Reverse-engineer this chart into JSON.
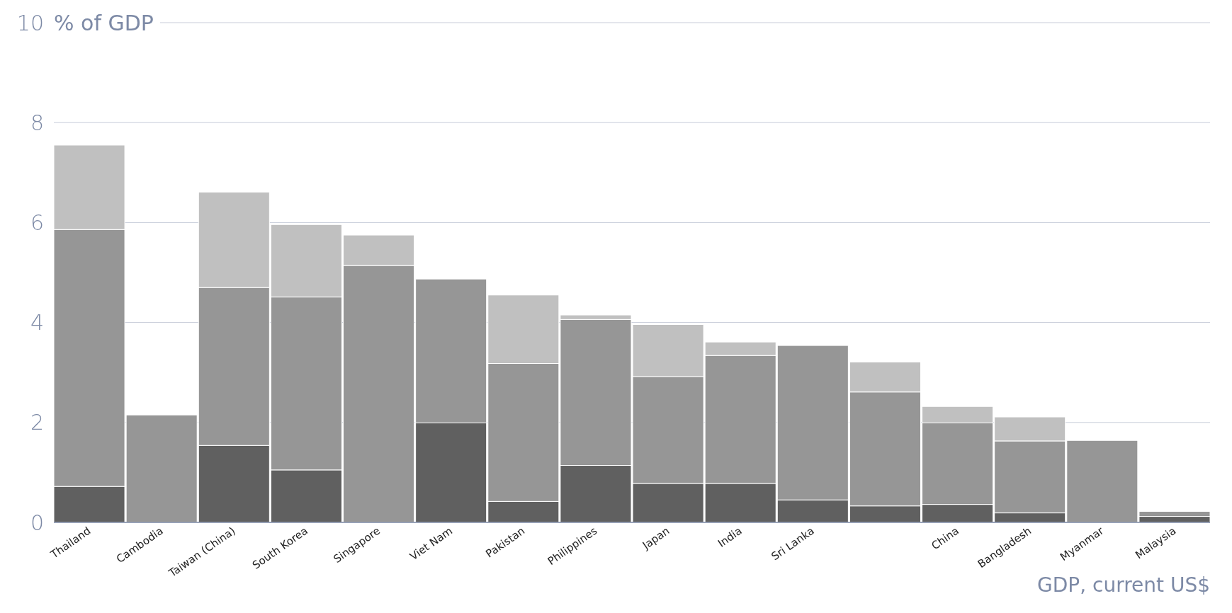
{
  "chart_data": {
    "type": "bar",
    "stacked": true,
    "ylabel": "% of GDP",
    "xlabel": "GDP, current US$",
    "categories": [
      "Thailand",
      "Cambodia",
      "Taiwan (China)",
      "South Korea",
      "Singapore",
      "Viet Nam",
      "Pakistan",
      "Philippines",
      "Japan",
      "India",
      "Sri Lanka",
      null,
      "China",
      "Bangladesh",
      "Myanmar",
      "Malaysia"
    ],
    "series": [
      {
        "color": "#606060",
        "values": [
          0.72,
          null,
          1.54,
          1.05,
          null,
          1.99,
          0.42,
          1.14,
          0.78,
          0.78,
          0.45,
          0.33,
          0.36,
          0.19,
          null,
          0.12
        ]
      },
      {
        "color": "#969696",
        "values": [
          5.14,
          2.15,
          3.16,
          3.46,
          5.14,
          2.88,
          2.76,
          2.92,
          2.14,
          2.56,
          3.09,
          2.28,
          1.63,
          1.44,
          1.64,
          0.1
        ]
      },
      {
        "color": "#c0c0c0",
        "values": [
          1.69,
          null,
          1.91,
          1.45,
          0.61,
          null,
          1.37,
          0.09,
          1.04,
          0.27,
          null,
          0.6,
          0.33,
          0.48,
          null,
          null
        ]
      }
    ],
    "ylim": [
      0,
      10
    ],
    "yticks": [
      0,
      2,
      4,
      6,
      8,
      10
    ],
    "grid": "y"
  }
}
